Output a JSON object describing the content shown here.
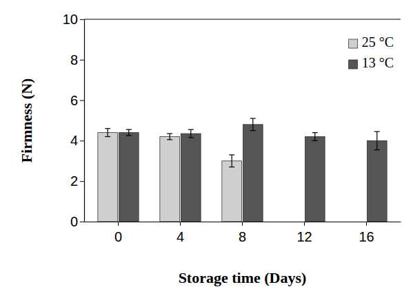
{
  "chart_data": {
    "type": "bar",
    "x_label": "Storage time (Days)",
    "y_label": "Firmness (N)",
    "categories": [
      "0",
      "4",
      "8",
      "12",
      "16"
    ],
    "series": [
      {
        "name": "25 °C",
        "color": "#cfcfcf",
        "values": [
          4.4,
          4.2,
          3.0,
          null,
          null
        ],
        "errors": [
          0.2,
          0.15,
          0.3,
          null,
          null
        ]
      },
      {
        "name": "13 °C",
        "color": "#555555",
        "values": [
          4.4,
          4.35,
          4.8,
          4.2,
          4.0
        ],
        "errors": [
          0.15,
          0.2,
          0.3,
          0.2,
          0.45
        ]
      }
    ],
    "ylim": [
      0,
      10
    ],
    "yticks": [
      0,
      2,
      4,
      6,
      8,
      10
    ],
    "legend": "upper right"
  }
}
